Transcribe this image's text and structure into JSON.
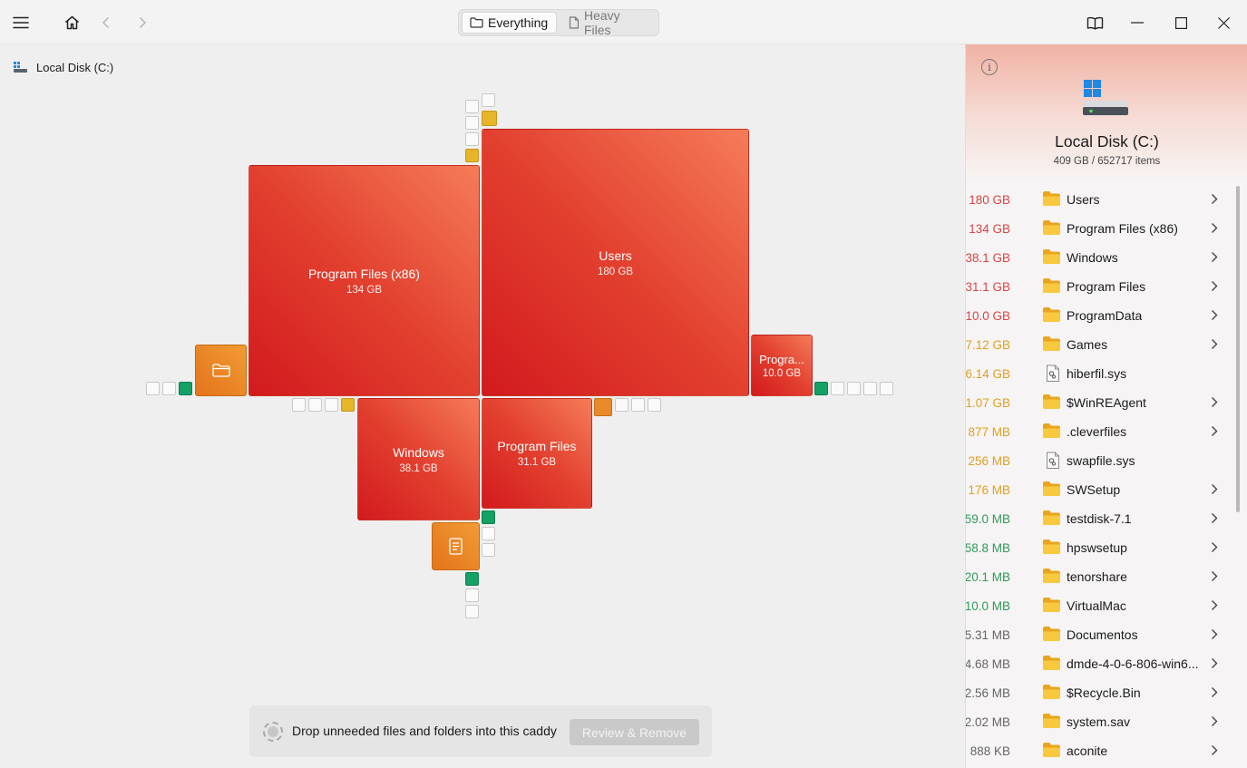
{
  "toolbar": {
    "tabs": [
      {
        "label": "Everything",
        "icon": "folder-icon",
        "active": true
      },
      {
        "label": "Heavy Files",
        "icon": "file-icon",
        "active": false
      }
    ]
  },
  "breadcrumb": {
    "label": "Local Disk (C:)",
    "icon": "drive-icon"
  },
  "treemap": {
    "tiles": [
      {
        "name": "Users",
        "size": "180 GB"
      },
      {
        "name": "Program Files (x86)",
        "size": "134 GB"
      },
      {
        "name": "Windows",
        "size": "38.1 GB"
      },
      {
        "name": "Program Files",
        "size": "31.1 GB"
      },
      {
        "name": "Progra...",
        "size": "10.0 GB"
      }
    ]
  },
  "caddy": {
    "text": "Drop unneeded files and folders into this caddy",
    "button": "Review & Remove"
  },
  "panel": {
    "title": "Local Disk (C:)",
    "subtitle": "409 GB / 652717 items",
    "colors": {
      "red": "#d94545",
      "orange": "#e0a020",
      "green": "#2e9a56",
      "gray": "#666666"
    },
    "items": [
      {
        "size": "180 GB",
        "name": "Users",
        "type": "folder",
        "color": "#d94545",
        "chevron": true
      },
      {
        "size": "134 GB",
        "name": "Program Files (x86)",
        "type": "folder",
        "color": "#d94545",
        "chevron": true
      },
      {
        "size": "38.1 GB",
        "name": "Windows",
        "type": "folder",
        "color": "#d94545",
        "chevron": true
      },
      {
        "size": "31.1 GB",
        "name": "Program Files",
        "type": "folder",
        "color": "#d94545",
        "chevron": true
      },
      {
        "size": "10.0 GB",
        "name": "ProgramData",
        "type": "folder",
        "color": "#d94545",
        "chevron": true
      },
      {
        "size": "7.12 GB",
        "name": "Games",
        "type": "folder",
        "color": "#e0a020",
        "chevron": true
      },
      {
        "size": "6.14 GB",
        "name": "hiberfil.sys",
        "type": "file",
        "color": "#e0a020",
        "chevron": false
      },
      {
        "size": "1.07 GB",
        "name": "$WinREAgent",
        "type": "folder",
        "color": "#e0a020",
        "chevron": true
      },
      {
        "size": "877 MB",
        "name": ".cleverfiles",
        "type": "folder",
        "color": "#e0a020",
        "chevron": true
      },
      {
        "size": "256 MB",
        "name": "swapfile.sys",
        "type": "file",
        "color": "#e0a020",
        "chevron": false
      },
      {
        "size": "176 MB",
        "name": "SWSetup",
        "type": "folder",
        "color": "#e0a020",
        "chevron": true
      },
      {
        "size": "59.0 MB",
        "name": "testdisk-7.1",
        "type": "folder",
        "color": "#2e9a56",
        "chevron": true
      },
      {
        "size": "58.8 MB",
        "name": "hpswsetup",
        "type": "folder",
        "color": "#2e9a56",
        "chevron": true
      },
      {
        "size": "20.1 MB",
        "name": "tenorshare",
        "type": "folder",
        "color": "#2e9a56",
        "chevron": true
      },
      {
        "size": "10.0 MB",
        "name": "VirtualMac",
        "type": "folder",
        "color": "#2e9a56",
        "chevron": true
      },
      {
        "size": "5.31 MB",
        "name": "Documentos",
        "type": "folder",
        "color": "#666666",
        "chevron": true
      },
      {
        "size": "4.68 MB",
        "name": "dmde-4-0-6-806-win6...",
        "type": "folder",
        "color": "#666666",
        "chevron": true
      },
      {
        "size": "2.56 MB",
        "name": "$Recycle.Bin",
        "type": "folder",
        "color": "#666666",
        "chevron": true
      },
      {
        "size": "2.02 MB",
        "name": "system.sav",
        "type": "folder",
        "color": "#666666",
        "chevron": true
      },
      {
        "size": "888 KB",
        "name": "aconite",
        "type": "folder",
        "color": "#666666",
        "chevron": true
      }
    ]
  }
}
